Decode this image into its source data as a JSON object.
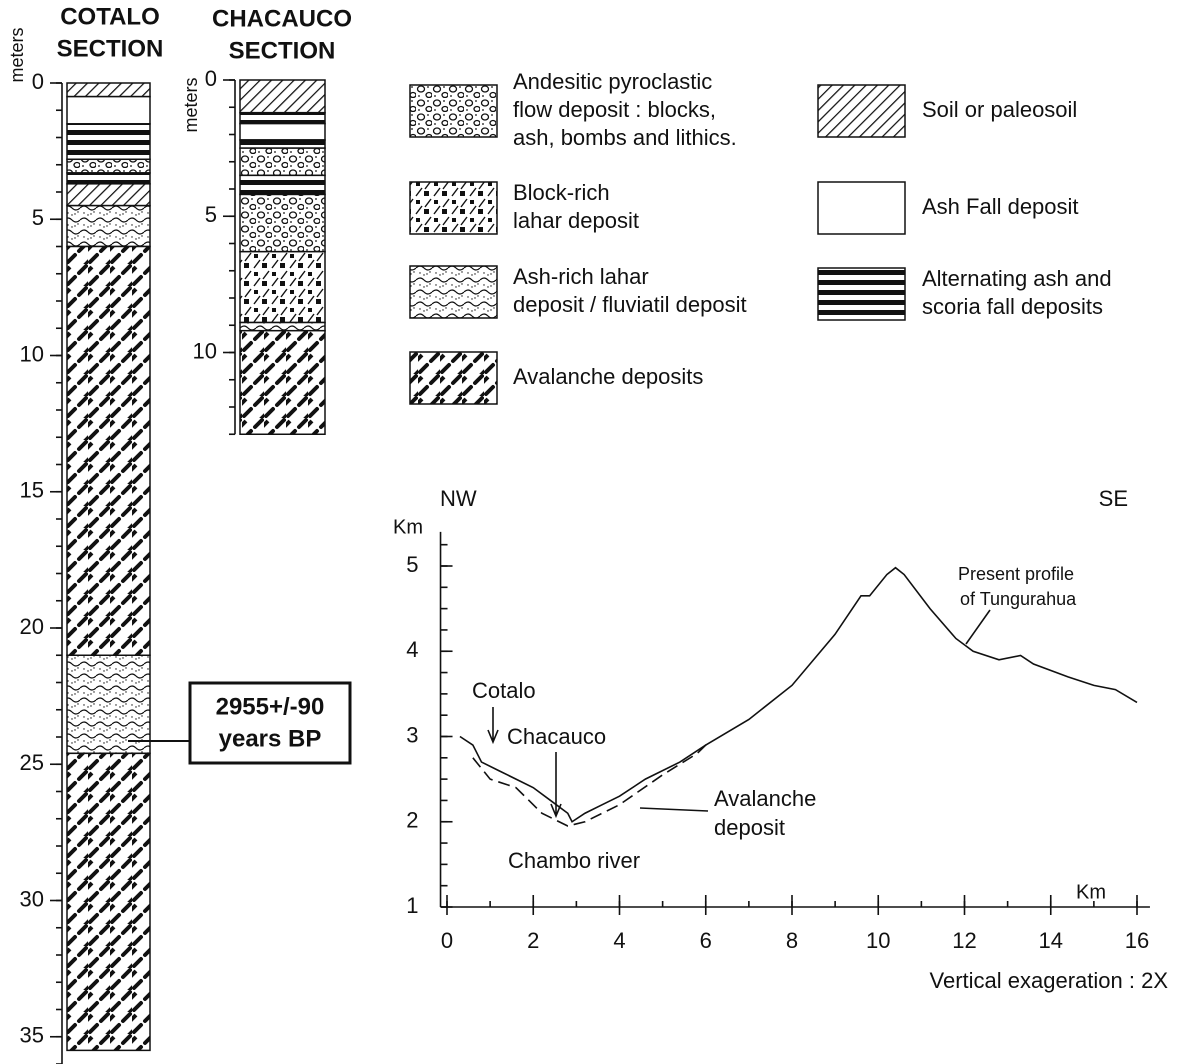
{
  "columns": [
    {
      "title": [
        "COTALO",
        "SECTION"
      ],
      "axis_label": "meters",
      "ylim": [
        0,
        36
      ],
      "yticks": [
        0,
        5,
        10,
        15,
        20,
        25,
        30,
        35
      ],
      "yminor": 1,
      "layers": [
        {
          "top": 0,
          "bottom": 0.5,
          "type": "soil"
        },
        {
          "top": 0.5,
          "bottom": 1.5,
          "type": "ash"
        },
        {
          "top": 1.5,
          "bottom": 2.8,
          "type": "alternating"
        },
        {
          "top": 2.8,
          "bottom": 3.3,
          "type": "pyroclastic"
        },
        {
          "top": 3.3,
          "bottom": 3.7,
          "type": "alternating"
        },
        {
          "top": 3.7,
          "bottom": 4.5,
          "type": "soil"
        },
        {
          "top": 4.5,
          "bottom": 6,
          "type": "ashlahar"
        },
        {
          "top": 6,
          "bottom": 21,
          "type": "avalanche"
        },
        {
          "top": 21,
          "bottom": 24.6,
          "type": "ashlahar"
        },
        {
          "top": 24.6,
          "bottom": 35.5,
          "type": "avalanche"
        }
      ]
    },
    {
      "title": [
        "CHACAUCO",
        "SECTION"
      ],
      "axis_label": "meters",
      "ylim": [
        0,
        13
      ],
      "yticks": [
        0,
        5,
        10
      ],
      "yminor": 1,
      "layers": [
        {
          "top": 0,
          "bottom": 1.2,
          "type": "soil"
        },
        {
          "top": 1.2,
          "bottom": 1.6,
          "type": "alternating"
        },
        {
          "top": 1.6,
          "bottom": 2.2,
          "type": "ash"
        },
        {
          "top": 2.2,
          "bottom": 2.5,
          "type": "alternating"
        },
        {
          "top": 2.5,
          "bottom": 3.5,
          "type": "pyroclastic"
        },
        {
          "top": 3.5,
          "bottom": 4.2,
          "type": "alternating"
        },
        {
          "top": 4.2,
          "bottom": 6.3,
          "type": "pyroclastic"
        },
        {
          "top": 6.3,
          "bottom": 8.9,
          "type": "block"
        },
        {
          "top": 8.9,
          "bottom": 9.2,
          "type": "ashlahar"
        },
        {
          "top": 9.2,
          "bottom": 13,
          "type": "avalanche"
        }
      ]
    }
  ],
  "legend": [
    {
      "type": "pyroclastic",
      "label": [
        "Andesitic pyroclastic",
        "flow deposit : blocks,",
        "ash, bombs and lithics."
      ]
    },
    {
      "type": "block",
      "label": [
        "Block-rich",
        "lahar deposit"
      ]
    },
    {
      "type": "ashlahar",
      "label": [
        "Ash-rich lahar",
        "deposit / fluviatil deposit"
      ]
    },
    {
      "type": "avalanche",
      "label": [
        "Avalanche deposits"
      ]
    },
    {
      "type": "soil",
      "label": [
        "Soil or paleosoil"
      ]
    },
    {
      "type": "ash",
      "label": [
        "Ash Fall deposit"
      ]
    },
    {
      "type": "alternating",
      "label": [
        "Alternating ash and",
        "scoria fall deposits"
      ]
    }
  ],
  "date_box": [
    "2955+/-90",
    "years BP"
  ],
  "profile": {
    "left_label": "NW",
    "right_label": "SE",
    "ylabel": "Km",
    "xlabel": "Km",
    "note": "Vertical exageration : 2X",
    "xlim": [
      -0.15,
      16.3
    ],
    "ylim": [
      1,
      5.4
    ],
    "xticks": [
      0,
      2,
      4,
      6,
      8,
      10,
      12,
      14,
      16
    ],
    "yticks": [
      1,
      2,
      3,
      4,
      5
    ],
    "xminor": 1,
    "yminor": 0.25,
    "annotations": {
      "cotalo": "Cotalo",
      "chacauco": "Chacauco",
      "avalanche": [
        "Avalanche",
        "deposit"
      ],
      "river": "Chambo river",
      "present": [
        "Present profile",
        "of Tungurahua"
      ]
    },
    "series": [
      {
        "dashed": false,
        "x": [
          0.3,
          0.6,
          0.8,
          1.2,
          1.6,
          2.0,
          2.4,
          2.8,
          2.9,
          3.2,
          3.6,
          4.0,
          4.6,
          5.4,
          6.0,
          7.0,
          8.0,
          9.0,
          9.6,
          9.8,
          10.2,
          10.4,
          10.6,
          11.2,
          11.8,
          12.2,
          12.8,
          13.3,
          13.6,
          14.4,
          15.0,
          15.5,
          16.0
        ],
        "y": [
          3.0,
          2.9,
          2.7,
          2.6,
          2.5,
          2.4,
          2.25,
          2.1,
          2.0,
          2.1,
          2.2,
          2.3,
          2.5,
          2.7,
          2.9,
          3.2,
          3.6,
          4.2,
          4.65,
          4.65,
          4.9,
          4.98,
          4.9,
          4.5,
          4.15,
          4.0,
          3.9,
          3.95,
          3.85,
          3.7,
          3.6,
          3.55,
          3.4
        ]
      },
      {
        "dashed": true,
        "x": [
          0.6,
          1.0,
          1.6,
          2.2,
          2.8,
          3.2,
          4.0,
          5.0,
          5.8,
          6.1
        ],
        "y": [
          2.75,
          2.5,
          2.4,
          2.1,
          1.95,
          2.0,
          2.2,
          2.55,
          2.8,
          2.95
        ]
      }
    ]
  }
}
